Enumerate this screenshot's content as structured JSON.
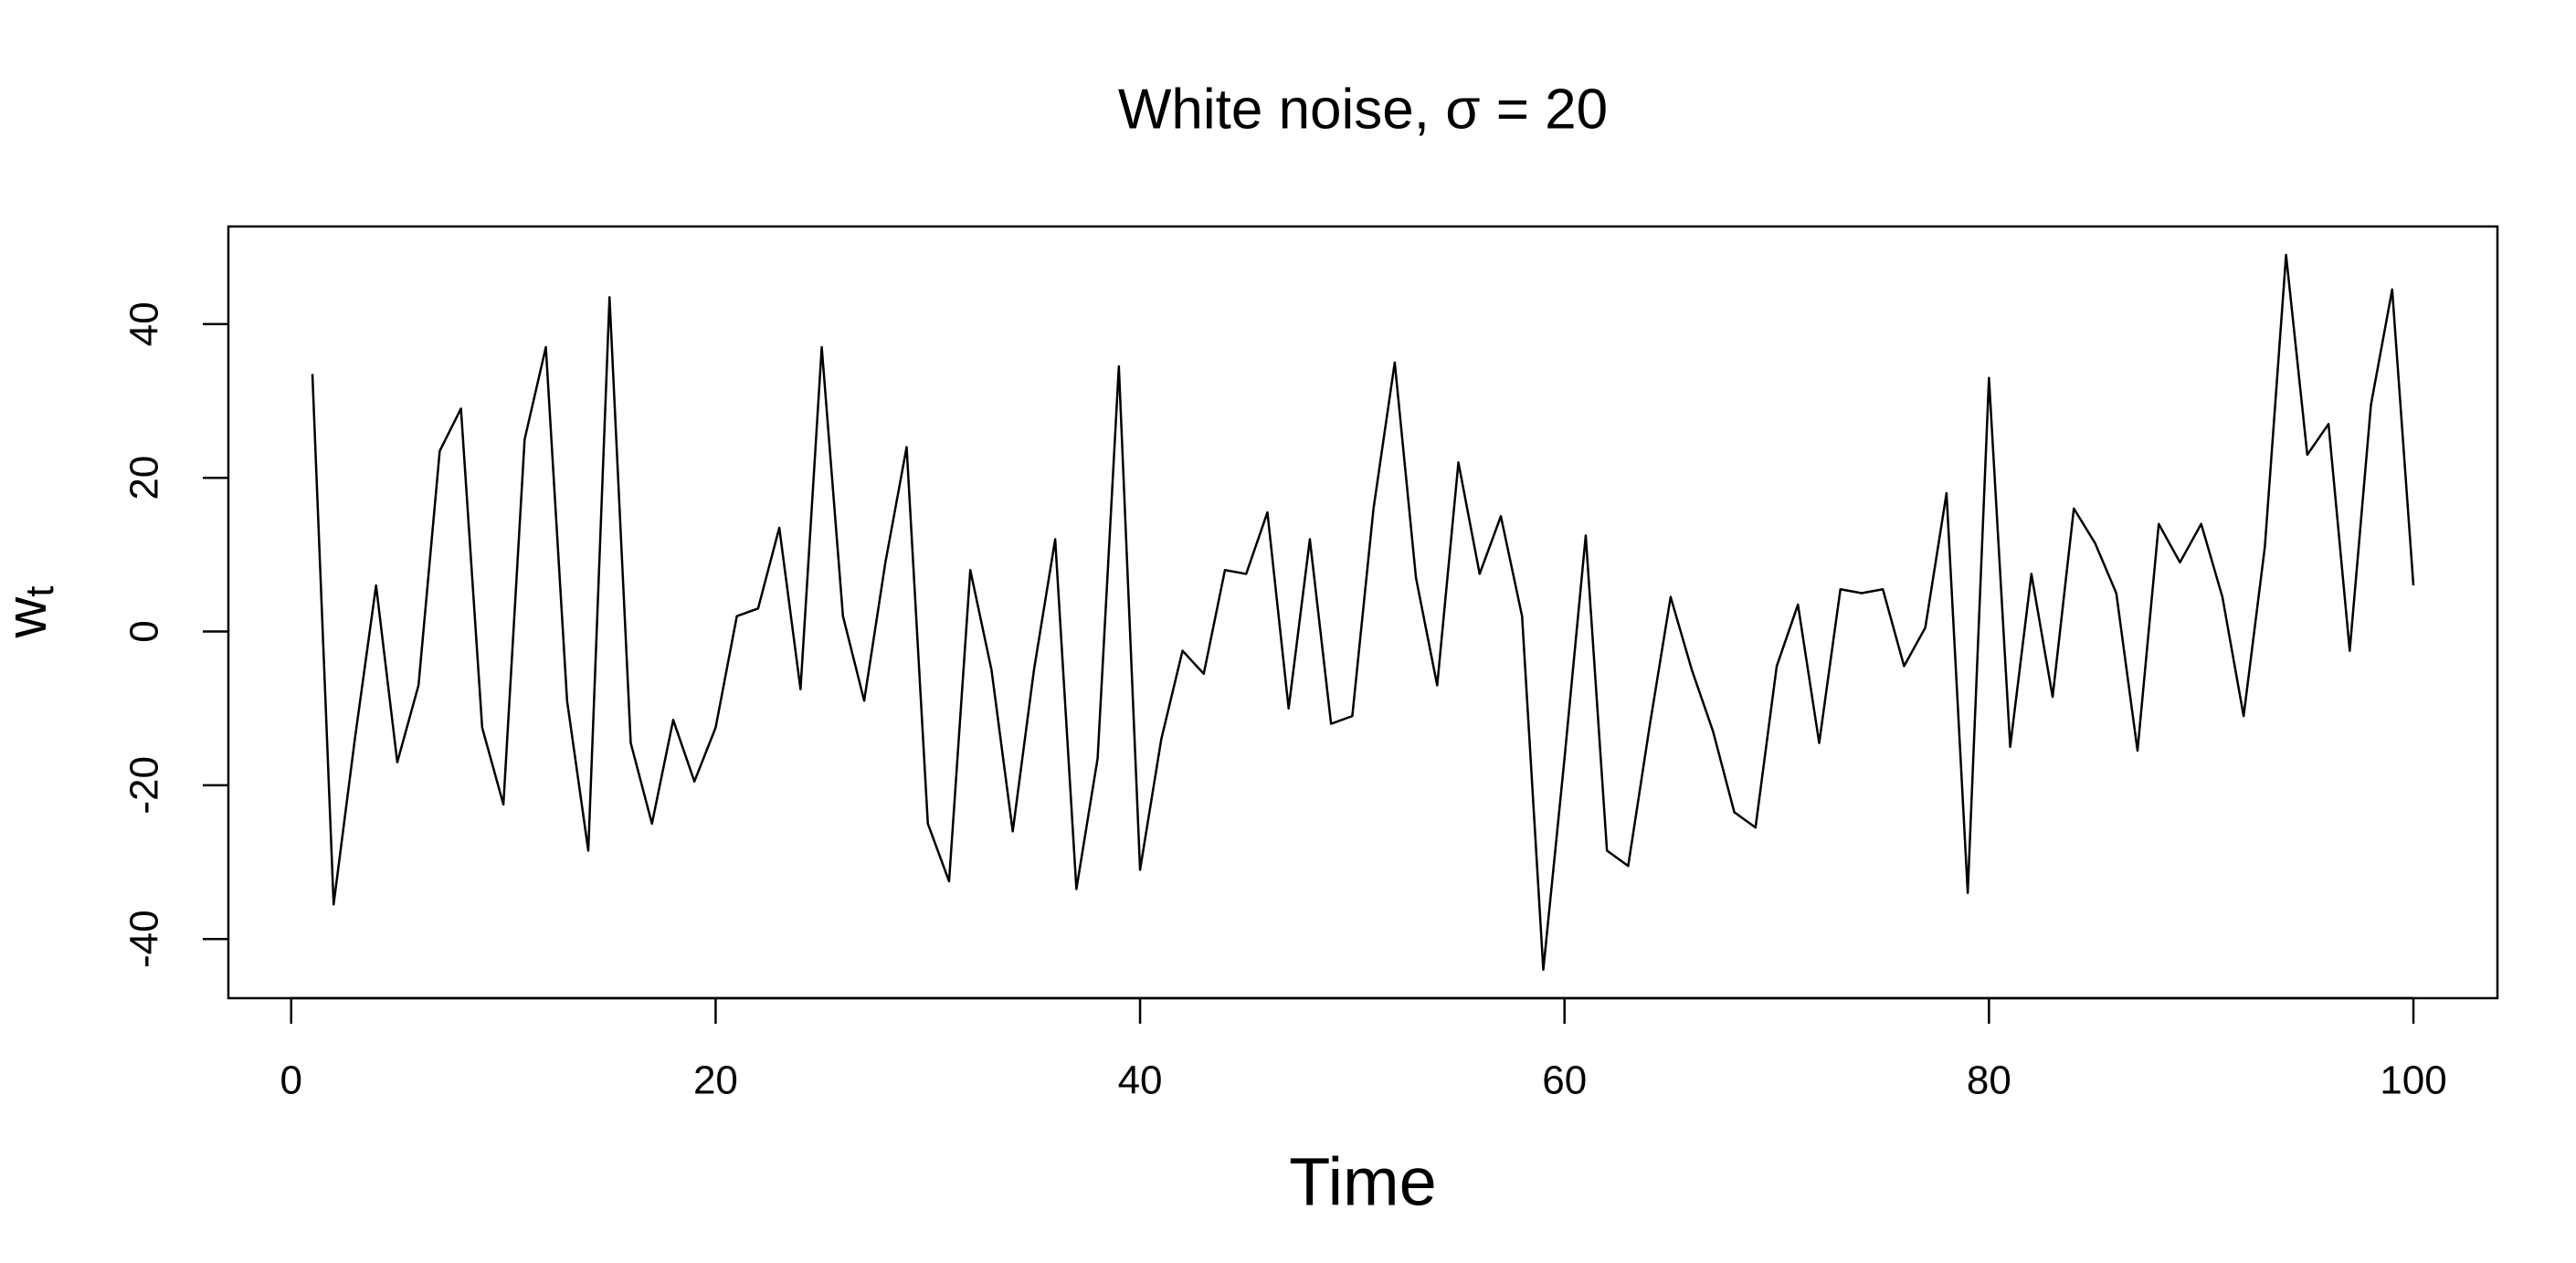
{
  "chart_data": {
    "type": "line",
    "title": "White noise, σ = 20",
    "xlabel": "Time",
    "ylabel": "w",
    "ylabel_subscript": "t",
    "x": [
      1,
      2,
      3,
      4,
      5,
      6,
      7,
      8,
      9,
      10,
      11,
      12,
      13,
      14,
      15,
      16,
      17,
      18,
      19,
      20,
      21,
      22,
      23,
      24,
      25,
      26,
      27,
      28,
      29,
      30,
      31,
      32,
      33,
      34,
      35,
      36,
      37,
      38,
      39,
      40,
      41,
      42,
      43,
      44,
      45,
      46,
      47,
      48,
      49,
      50,
      51,
      52,
      53,
      54,
      55,
      56,
      57,
      58,
      59,
      60,
      61,
      62,
      63,
      64,
      65,
      66,
      67,
      68,
      69,
      70,
      71,
      72,
      73,
      74,
      75,
      76,
      77,
      78,
      79,
      80,
      81,
      82,
      83,
      84,
      85,
      86,
      87,
      88,
      89,
      90,
      91,
      92,
      93,
      94,
      95,
      96,
      97,
      98,
      99,
      100
    ],
    "series": [
      {
        "name": "w",
        "color": "#000000",
        "values": [
          33.5,
          -35.5,
          -14,
          6,
          -17,
          -7,
          23.5,
          29,
          -12.5,
          -22.5,
          25,
          37,
          -9,
          -28.5,
          43.5,
          -14.5,
          -25,
          -11.5,
          -19.5,
          -12.5,
          2,
          3,
          13.5,
          -7.5,
          37,
          2,
          -9,
          9,
          24,
          -25,
          -32.5,
          8,
          -5,
          -26,
          -5,
          12,
          -33.5,
          -16.5,
          34.5,
          -31,
          -14,
          -2.5,
          -5.5,
          8,
          7.5,
          15.5,
          -10,
          12,
          -12,
          -11,
          16,
          35,
          7,
          -7,
          22,
          7.5,
          15,
          2,
          -44,
          -16.5,
          12.5,
          -28.5,
          -30.5,
          -12.5,
          4.5,
          -5,
          -13,
          -23.5,
          -25.5,
          -4.5,
          3.5,
          -14.5,
          5.5,
          5,
          5.5,
          -4.5,
          0.5,
          18,
          -34,
          33,
          -15,
          7.5,
          -8.5,
          16,
          11.5,
          5,
          -15.5,
          14,
          9,
          14,
          4.5,
          -11,
          11,
          49,
          23,
          27,
          -2.5,
          29.5,
          44.5,
          6
        ]
      }
    ],
    "xlim": [
      -2.96,
      103.96
    ],
    "ylim": [
      -47.7,
      52.7
    ],
    "xticks": [
      0,
      20,
      40,
      60,
      80,
      100
    ],
    "yticks": [
      -40,
      -20,
      0,
      20,
      40
    ],
    "grid": false
  }
}
